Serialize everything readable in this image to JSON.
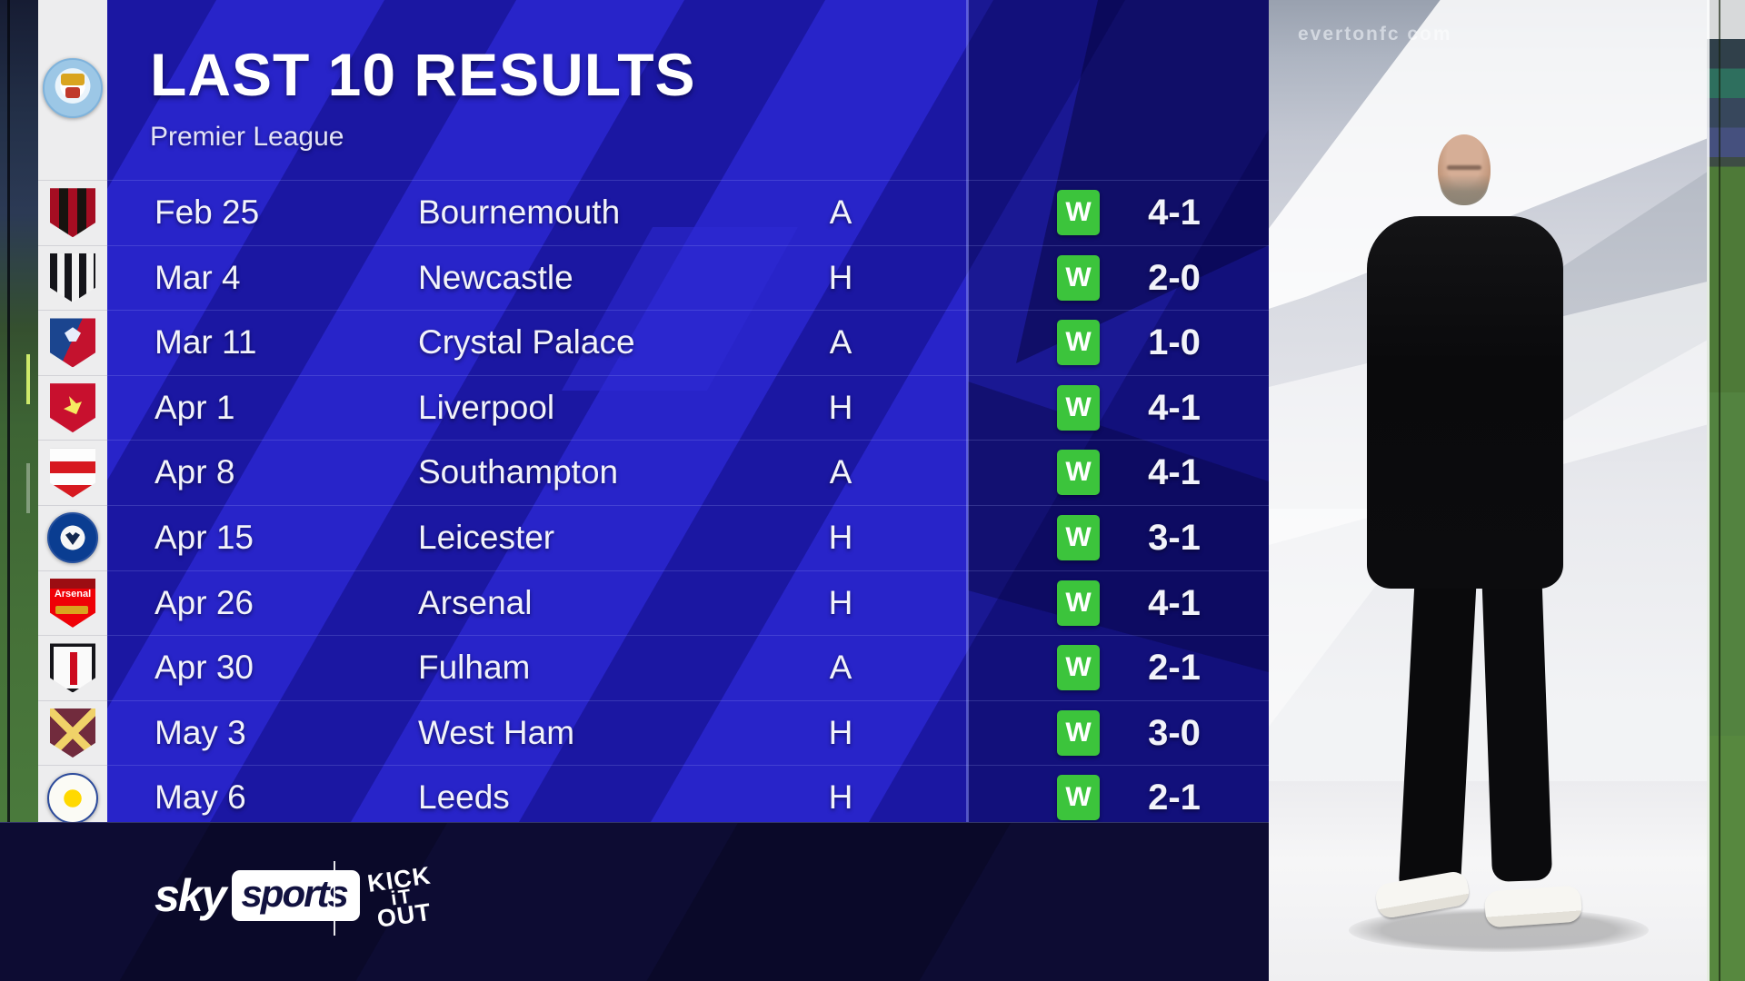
{
  "header": {
    "title": "LAST 10 RESULTS",
    "subtitle": "Premier League"
  },
  "club": {
    "name": "Manchester City",
    "crest": "man-city"
  },
  "results": [
    {
      "date": "Feb 25",
      "opponent": "Bournemouth",
      "venue": "A",
      "result": "W",
      "score": "4-1",
      "crest": "bournemouth"
    },
    {
      "date": "Mar 4",
      "opponent": "Newcastle",
      "venue": "H",
      "result": "W",
      "score": "2-0",
      "crest": "newcastle"
    },
    {
      "date": "Mar 11",
      "opponent": "Crystal Palace",
      "venue": "A",
      "result": "W",
      "score": "1-0",
      "crest": "crystal-palace"
    },
    {
      "date": "Apr 1",
      "opponent": "Liverpool",
      "venue": "H",
      "result": "W",
      "score": "4-1",
      "crest": "liverpool"
    },
    {
      "date": "Apr 8",
      "opponent": "Southampton",
      "venue": "A",
      "result": "W",
      "score": "4-1",
      "crest": "southampton"
    },
    {
      "date": "Apr 15",
      "opponent": "Leicester",
      "venue": "H",
      "result": "W",
      "score": "3-1",
      "crest": "leicester"
    },
    {
      "date": "Apr 26",
      "opponent": "Arsenal",
      "venue": "H",
      "result": "W",
      "score": "4-1",
      "crest": "arsenal",
      "crest_text": "Arsenal"
    },
    {
      "date": "Apr 30",
      "opponent": "Fulham",
      "venue": "A",
      "result": "W",
      "score": "2-1",
      "crest": "fulham"
    },
    {
      "date": "May 3",
      "opponent": "West Ham",
      "venue": "H",
      "result": "W",
      "score": "3-0",
      "crest": "west-ham"
    },
    {
      "date": "May 6",
      "opponent": "Leeds",
      "venue": "H",
      "result": "W",
      "score": "2-1",
      "crest": "leeds"
    }
  ],
  "footer": {
    "sky_prefix": "sky",
    "sky_suffix": "sports",
    "partner_lines": {
      "l1": "KICK",
      "l2": "iT",
      "l3": "OUT"
    }
  },
  "background": {
    "watermark": "evertonfc com"
  },
  "colors": {
    "win_green": "#3cc43c",
    "panel_blue": "#1b17a2",
    "stripe_blue": "#2824c9",
    "footer_navy": "#0d0c33",
    "pitch_green": "#4e7a38"
  }
}
